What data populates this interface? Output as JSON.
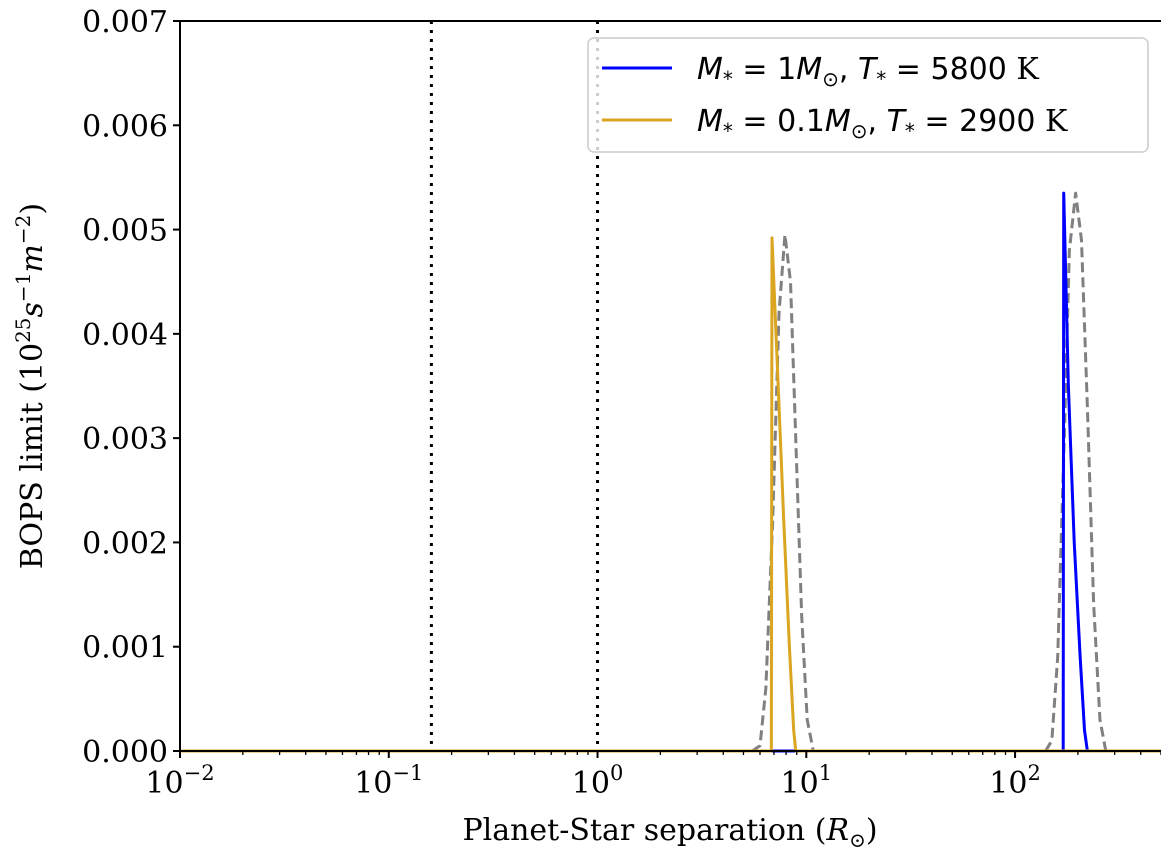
{
  "chart_data": {
    "type": "line",
    "title": "",
    "xscale": "log",
    "xlim": [
      0.01,
      500
    ],
    "ylim": [
      0,
      0.007
    ],
    "xlabel": {
      "prefix": "Planet-Star separation (",
      "symbol": "R",
      "sub": "⊙",
      "suffix": ")"
    },
    "ylabel": {
      "prefix": "BOPS limit (10",
      "sup1": "25",
      "mid": "s",
      "sup2": "−1",
      "mid2": "m",
      "sup3": "−2",
      "suffix": ")"
    },
    "yticks": [
      {
        "value": 0.0,
        "label": "0.000"
      },
      {
        "value": 0.001,
        "label": "0.001"
      },
      {
        "value": 0.002,
        "label": "0.002"
      },
      {
        "value": 0.003,
        "label": "0.003"
      },
      {
        "value": 0.004,
        "label": "0.004"
      },
      {
        "value": 0.005,
        "label": "0.005"
      },
      {
        "value": 0.006,
        "label": "0.006"
      },
      {
        "value": 0.007,
        "label": "0.007"
      }
    ],
    "xticks": [
      {
        "value": 0.01,
        "base": "10",
        "exp": "−2"
      },
      {
        "value": 0.1,
        "base": "10",
        "exp": "−1"
      },
      {
        "value": 1,
        "base": "10",
        "exp": "0"
      },
      {
        "value": 10,
        "base": "10",
        "exp": "1"
      },
      {
        "value": 100,
        "base": "10",
        "exp": "2"
      }
    ],
    "vlines": [
      {
        "x": 0.16,
        "style": "dotted",
        "color": "#000000"
      },
      {
        "x": 1.0,
        "style": "dotted",
        "color": "#000000"
      }
    ],
    "series": [
      {
        "name": "M* = 1M⊙, T* = 5800 K",
        "legend": {
          "m_val": "1",
          "t_val": "5800"
        },
        "color": "#0000ff",
        "style": "solid",
        "points": [
          [
            0.01,
            0
          ],
          [
            170,
            0
          ],
          [
            171,
            0.00535
          ],
          [
            180,
            0.0035
          ],
          [
            192,
            0.002
          ],
          [
            205,
            0.0009
          ],
          [
            215,
            0.0002
          ],
          [
            222,
            0
          ],
          [
            500,
            0
          ]
        ]
      },
      {
        "name": "M* = 0.1M⊙, T* = 2900 K",
        "legend": {
          "m_val": "0.1",
          "t_val": "2900"
        },
        "color": "#daa520",
        "style": "solid",
        "points": [
          [
            0.01,
            0
          ],
          [
            6.8,
            0
          ],
          [
            6.85,
            0.00492
          ],
          [
            7.3,
            0.0036
          ],
          [
            7.8,
            0.0022
          ],
          [
            8.3,
            0.001
          ],
          [
            8.7,
            0.0002
          ],
          [
            8.9,
            0
          ],
          [
            500,
            0
          ]
        ]
      },
      {
        "name": "",
        "color": "#808080",
        "style": "dashed",
        "points": [
          [
            5.5,
            0
          ],
          [
            6.0,
            5e-05
          ],
          [
            6.4,
            0.0006
          ],
          [
            6.9,
            0.0022
          ],
          [
            7.4,
            0.0042
          ],
          [
            7.9,
            0.00495
          ],
          [
            8.4,
            0.0045
          ],
          [
            8.9,
            0.003
          ],
          [
            9.5,
            0.0013
          ],
          [
            10.1,
            0.0003
          ],
          [
            10.8,
            0
          ]
        ]
      },
      {
        "name": "",
        "color": "#808080",
        "style": "dashed",
        "points": [
          [
            140,
            0
          ],
          [
            150,
            0.0001
          ],
          [
            160,
            0.0009
          ],
          [
            172,
            0.003
          ],
          [
            182,
            0.0048
          ],
          [
            195,
            0.00535
          ],
          [
            208,
            0.0049
          ],
          [
            222,
            0.0033
          ],
          [
            238,
            0.0014
          ],
          [
            255,
            0.0003
          ],
          [
            272,
            0
          ]
        ]
      }
    ],
    "legend_position": "upper-right"
  }
}
